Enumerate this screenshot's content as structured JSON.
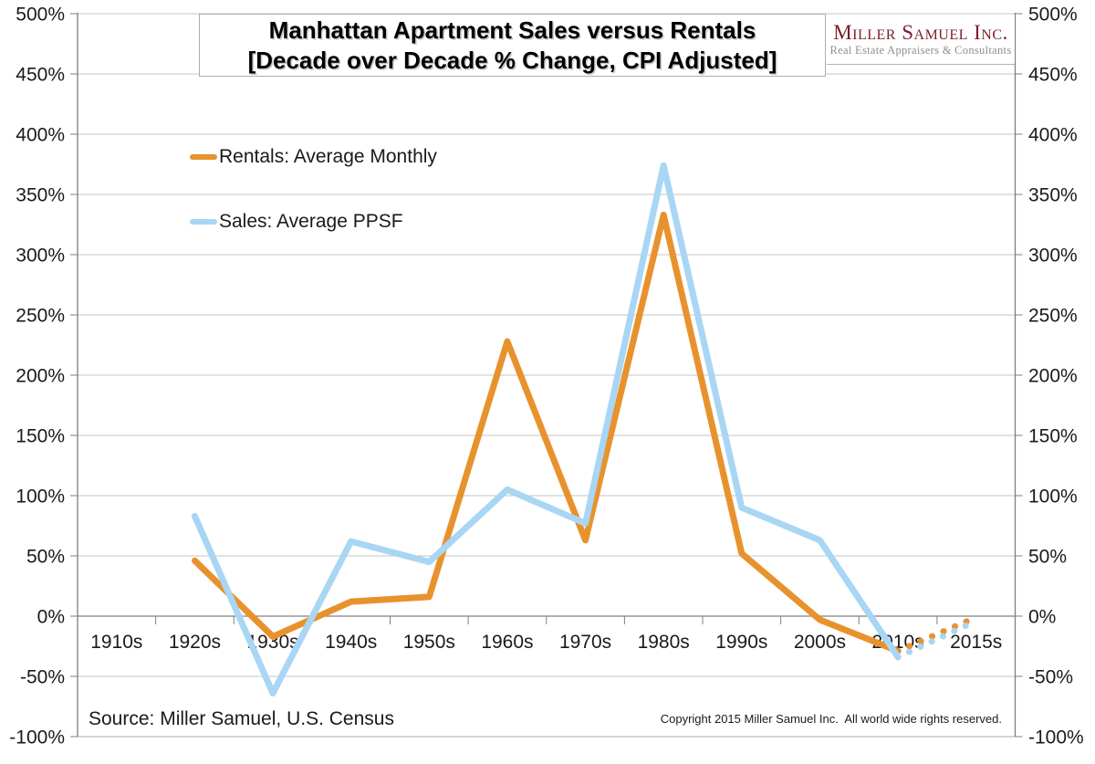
{
  "chart_data": {
    "type": "line",
    "title_line1": "Manhattan Apartment Sales versus Rentals",
    "title_line2": "[Decade over Decade % Change, CPI Adjusted]",
    "categories": [
      "1910s",
      "1920s",
      "1930s",
      "1940s",
      "1950s",
      "1960s",
      "1970s",
      "1980s",
      "1990s",
      "2000s",
      "2010s",
      "2015s"
    ],
    "series": [
      {
        "name": "Rentals: Average Monthly",
        "color": "#E8922D",
        "values": [
          null,
          46,
          -17,
          12,
          16,
          228,
          63,
          333,
          52,
          -3,
          -29,
          -1
        ],
        "projected_from_index": 10
      },
      {
        "name": "Sales: Average PPSF",
        "color": "#A8D6F4",
        "values": [
          null,
          83,
          -64,
          62,
          45,
          105,
          77,
          374,
          90,
          63,
          -34,
          -4
        ],
        "projected_from_index": 10
      }
    ],
    "ylim": [
      -100,
      500
    ],
    "ytick_step": 50,
    "ytick_format": "{v}%",
    "y_axis_sides": "both",
    "grid": true,
    "legend_position": "upper-left-inside",
    "projection_style": "dotted"
  },
  "logo": {
    "name": "Miller Samuel Inc.",
    "tagline": "Real Estate Appraisers & Consultants",
    "brand_color": "#7B1E2B"
  },
  "footer": {
    "source": "Source: Miller Samuel, U.S. Census",
    "copyright": "Copyright 2015 Miller Samuel Inc.  All world wide rights reserved."
  }
}
